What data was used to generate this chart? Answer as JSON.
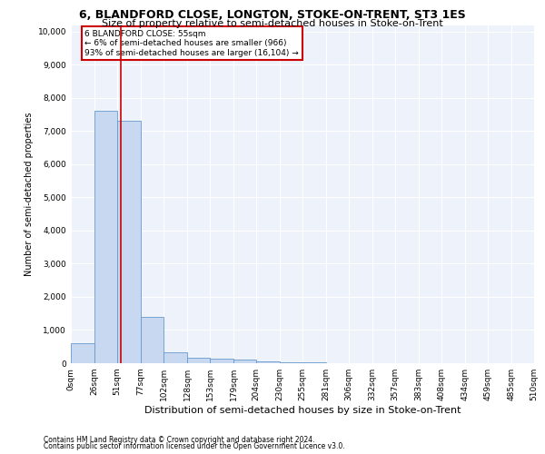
{
  "title": "6, BLANDFORD CLOSE, LONGTON, STOKE-ON-TRENT, ST3 1ES",
  "subtitle": "Size of property relative to semi-detached houses in Stoke-on-Trent",
  "xlabel": "Distribution of semi-detached houses by size in Stoke-on-Trent",
  "ylabel": "Number of semi-detached properties",
  "bar_values": [
    600,
    7600,
    7300,
    1400,
    325,
    175,
    125,
    100,
    60,
    30,
    15,
    10,
    5,
    3,
    2,
    1,
    0,
    0,
    0,
    0
  ],
  "bin_edges": [
    0,
    26,
    51,
    77,
    102,
    128,
    153,
    179,
    204,
    230,
    255,
    281,
    306,
    332,
    357,
    383,
    408,
    434,
    459,
    485,
    510
  ],
  "xtick_labels": [
    "0sqm",
    "26sqm",
    "51sqm",
    "77sqm",
    "102sqm",
    "128sqm",
    "153sqm",
    "179sqm",
    "204sqm",
    "230sqm",
    "255sqm",
    "281sqm",
    "306sqm",
    "332sqm",
    "357sqm",
    "383sqm",
    "408sqm",
    "434sqm",
    "459sqm",
    "485sqm",
    "510sqm"
  ],
  "bar_color": "#c8d8f0",
  "bar_edge_color": "#6699cc",
  "property_line_x": 55,
  "property_line_color": "#cc0000",
  "annotation_text": "6 BLANDFORD CLOSE: 55sqm\n← 6% of semi-detached houses are smaller (966)\n93% of semi-detached houses are larger (16,104) →",
  "annotation_box_color": "#ffffff",
  "annotation_box_edgecolor": "#cc0000",
  "ylim": [
    0,
    10200
  ],
  "yticks": [
    0,
    1000,
    2000,
    3000,
    4000,
    5000,
    6000,
    7000,
    8000,
    9000,
    10000
  ],
  "footer1": "Contains HM Land Registry data © Crown copyright and database right 2024.",
  "footer2": "Contains public sector information licensed under the Open Government Licence v3.0.",
  "bg_color": "#eef2fb",
  "grid_color": "#ffffff",
  "title_fontsize": 9,
  "subtitle_fontsize": 8,
  "ylabel_fontsize": 7,
  "xlabel_fontsize": 8,
  "tick_fontsize": 6.5,
  "annotation_fontsize": 6.5,
  "footer_fontsize": 5.5
}
